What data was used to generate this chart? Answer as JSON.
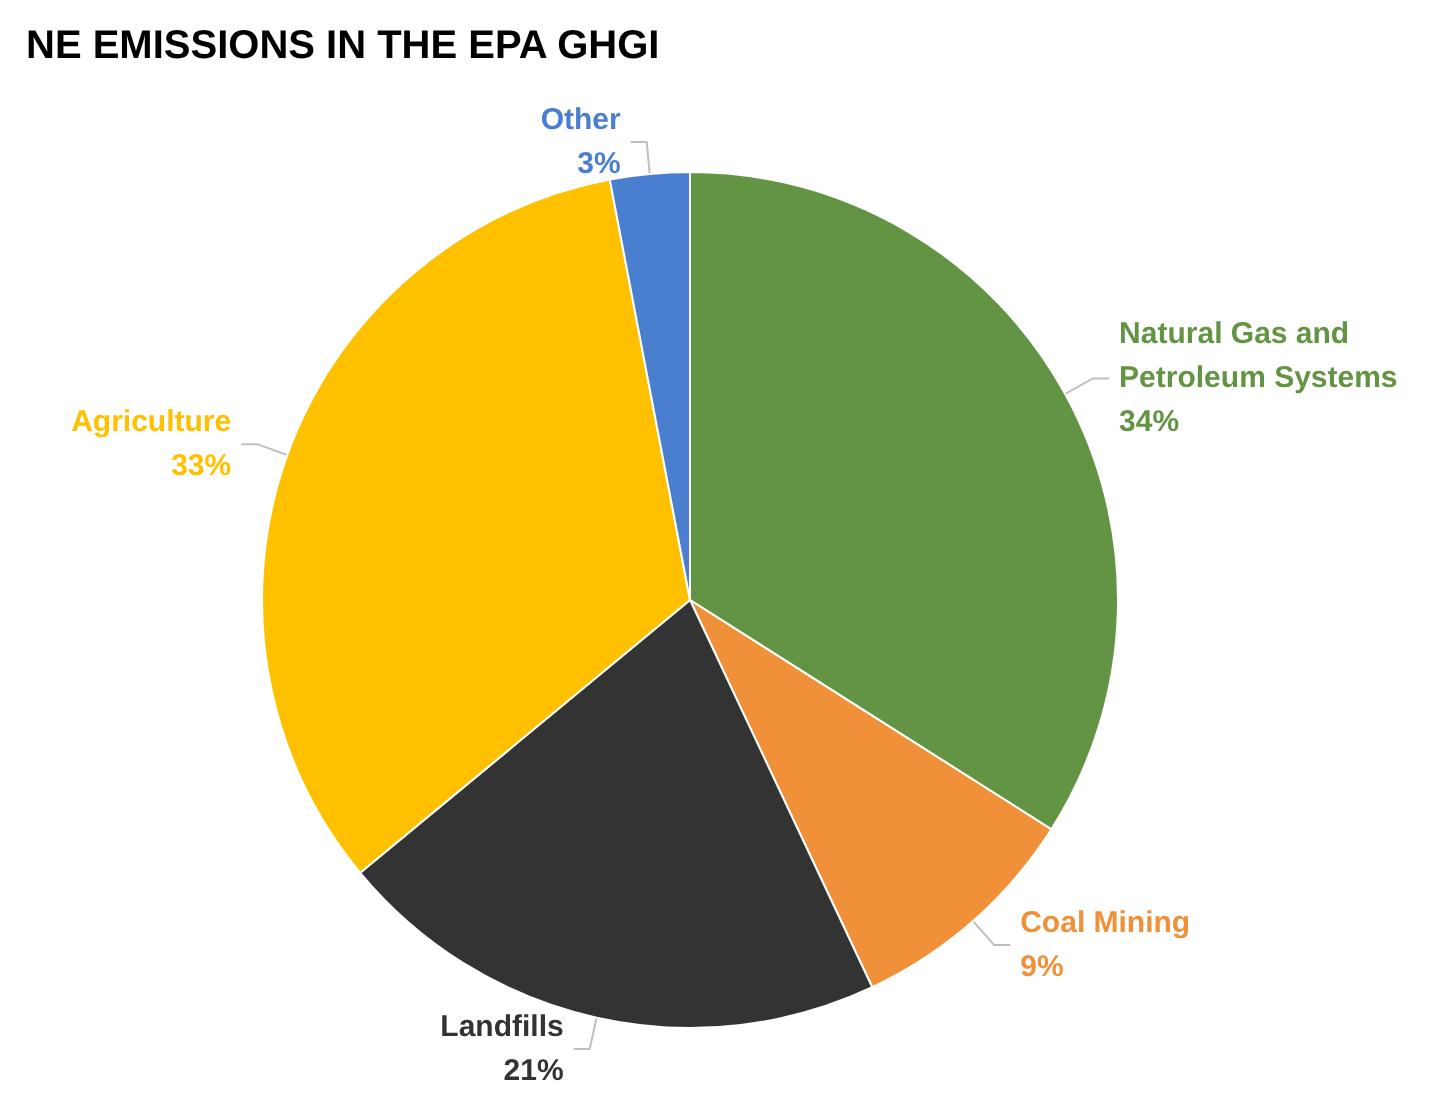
{
  "chart_data": {
    "type": "pie",
    "title": "NE EMISSIONS IN THE EPA GHGI",
    "categories": [
      "Natural Gas and Petroleum Systems",
      "Coal Mining",
      "Landfills",
      "Agriculture",
      "Other"
    ],
    "values": [
      34,
      9,
      21,
      33,
      3
    ],
    "colors": [
      "#629443",
      "#f0913a",
      "#333333",
      "#ffc000",
      "#4a7fd0"
    ],
    "value_labels": [
      "34%",
      "9%",
      "21%",
      "33%",
      "3%"
    ],
    "legend": false
  }
}
